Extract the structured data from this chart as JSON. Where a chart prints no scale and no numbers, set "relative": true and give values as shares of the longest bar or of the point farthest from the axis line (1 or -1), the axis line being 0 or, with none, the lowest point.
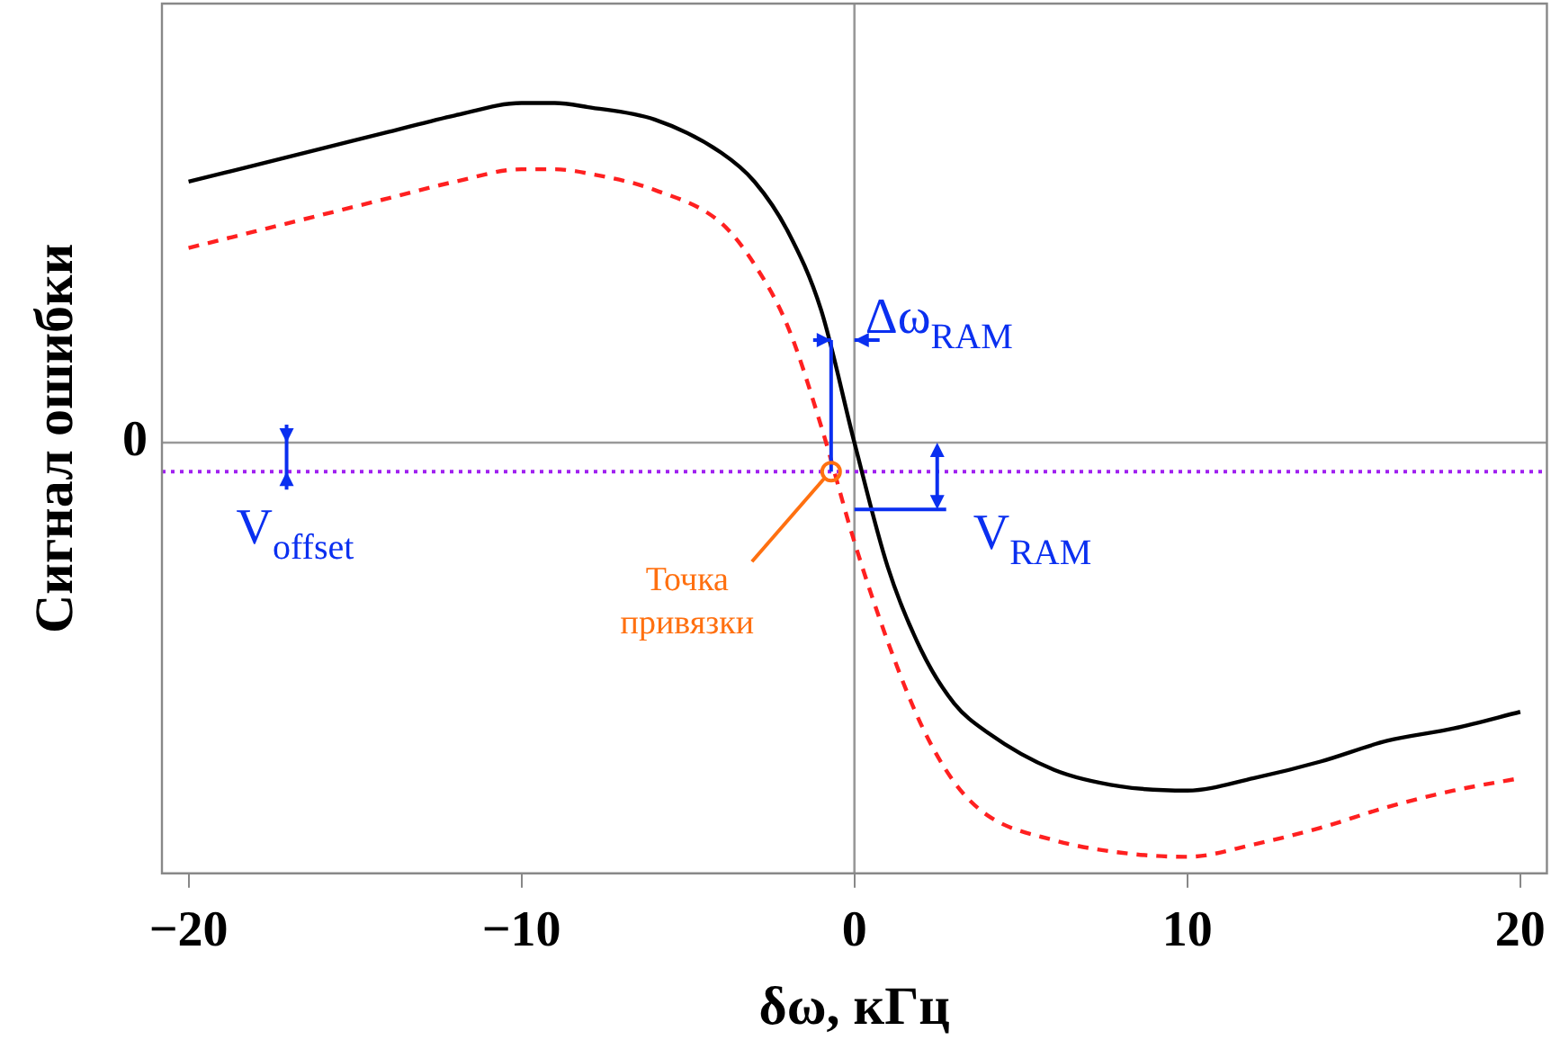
{
  "chart_data": {
    "type": "line",
    "relative": true,
    "xlabel": "δω, кГц",
    "ylabel": "Сигнал ошибки",
    "x": [
      -20,
      -18,
      -16,
      -14,
      -12,
      -10,
      -9,
      -8,
      -6,
      -4,
      -3,
      -2,
      -1,
      0,
      1,
      2,
      3,
      4,
      6,
      8,
      10,
      12,
      14,
      16,
      18,
      20
    ],
    "xlim": [
      -20.8,
      20.8
    ],
    "xticks": [
      {
        "value": -20,
        "label": "−20"
      },
      {
        "value": -10,
        "label": "−10"
      },
      0,
      10,
      20
    ],
    "series": [
      {
        "color": "#000000",
        "line_style": "solid",
        "values": [
          0.63,
          0.67,
          0.71,
          0.75,
          0.79,
          0.82,
          0.82,
          0.81,
          0.78,
          0.7,
          0.63,
          0.51,
          0.32,
          0,
          -0.3,
          -0.5,
          -0.63,
          -0.7,
          -0.79,
          -0.83,
          -0.84,
          -0.81,
          -0.77,
          -0.72,
          -0.69,
          -0.65
        ]
      },
      {
        "color": "#ff2020",
        "line_style": "dashed",
        "values": [
          0.47,
          0.51,
          0.55,
          0.59,
          0.63,
          0.66,
          0.66,
          0.65,
          0.61,
          0.53,
          0.43,
          0.28,
          0.04,
          -0.24,
          -0.48,
          -0.68,
          -0.82,
          -0.9,
          -0.96,
          -0.99,
          -1,
          -0.97,
          -0.93,
          -0.88,
          -0.84,
          -0.81
        ]
      }
    ],
    "ref_lines": [
      {
        "axis": "y",
        "value": 0,
        "label": "0",
        "color": "#999999",
        "line_style": "solid"
      },
      {
        "axis": "x",
        "value": 0,
        "color": "#999999",
        "line_style": "solid"
      },
      {
        "axis": "y",
        "value": -0.07,
        "color": "#a020f0",
        "line_style": "dotted"
      }
    ],
    "annotations": [
      "Δω$_{RAM}$",
      "V$_{offset}$",
      "V$_{RAM}$",
      {
        "text": "Точка привязки",
        "x": -0.7,
        "y": -0.07
      }
    ],
    "legend": false,
    "marker": "none",
    "grid": false
  }
}
